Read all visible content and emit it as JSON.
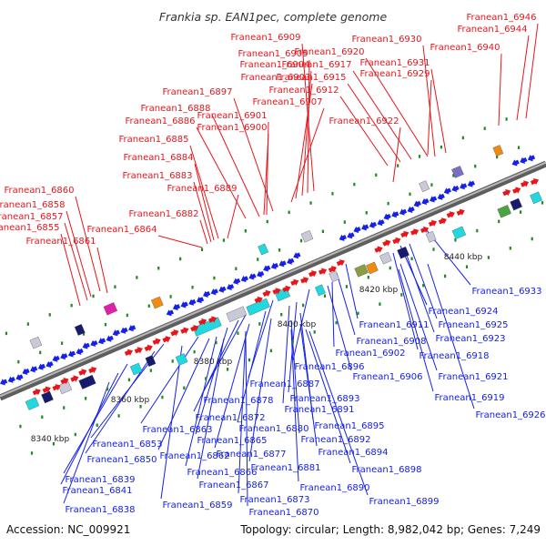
{
  "title": "Frankia sp. EAN1pec, complete genome",
  "footer": {
    "accession": "Accession: NC_009921",
    "summary": "Topology: circular; Length: 8,982,042 bp; Genes: 7,249"
  },
  "colors": {
    "forward": "#e8151b",
    "reverse": "#1520e8",
    "backbone": "#7d7d7d",
    "tick_dot": "#1e8c1e",
    "cog_cyan": "#22d8e0",
    "cog_navy": "#171b6e",
    "cog_grey": "#c9c9d8",
    "cog_purple": "#7b6fc4",
    "cog_orange": "#f08a10",
    "cog_magenta": "#e020a8",
    "cog_green": "#4aa542",
    "cog_olive": "#8a9d44"
  },
  "scale_ticks": [
    "8340 kbp",
    "8360 kbp",
    "8380 kbp",
    "8400 kbp",
    "8420 kbp",
    "8440 kbp"
  ],
  "forward_genes": [
    "Franean1_6946",
    "Franean1_6944",
    "Franean1_6940",
    "Franean1_6909",
    "Franean1_6905",
    "Franean1_6904",
    "Franean1_6903",
    "Franean1_6907",
    "Franean1_6930",
    "Franean1_6920",
    "Franean1_6917",
    "Franean1_6915",
    "Franean1_6912",
    "Franean1_6931",
    "Franean1_6929",
    "Franean1_6922",
    "Franean1_6897",
    "Franean1_6888",
    "Franean1_6886",
    "Franean1_6901",
    "Franean1_6900",
    "Franean1_6885",
    "Franean1_6884",
    "Franean1_6883",
    "Franean1_6889",
    "Franean1_6882",
    "Franean1_6860",
    "Franean1_6858",
    "Franean1_6857",
    "Franean1_6855",
    "Franean1_6861",
    "Franean1_6864"
  ],
  "reverse_genes": [
    "Franean1_6933",
    "Franean1_6924",
    "Franean1_6911",
    "Franean1_6925",
    "Franean1_6908",
    "Franean1_6923",
    "Franean1_6918",
    "Franean1_6902",
    "Franean1_6896",
    "Franean1_6906",
    "Franean1_6921",
    "Franean1_6887",
    "Franean1_6919",
    "Franean1_6893",
    "Franean1_6878",
    "Franean1_6891",
    "Franean1_6926",
    "Franean1_6872",
    "Franean1_6895",
    "Franean1_6863",
    "Franean1_6880",
    "Franean1_6865",
    "Franean1_6892",
    "Franean1_6853",
    "Franean1_6877",
    "Franean1_6894",
    "Franean1_6850",
    "Franean1_6862",
    "Franean1_6881",
    "Franean1_6898",
    "Franean1_6866",
    "Franean1_6839",
    "Franean1_6867",
    "Franean1_6890",
    "Franean1_6841",
    "Franean1_6873",
    "Franean1_6859",
    "Franean1_6899",
    "Franean1_6838",
    "Franean1_6870"
  ]
}
